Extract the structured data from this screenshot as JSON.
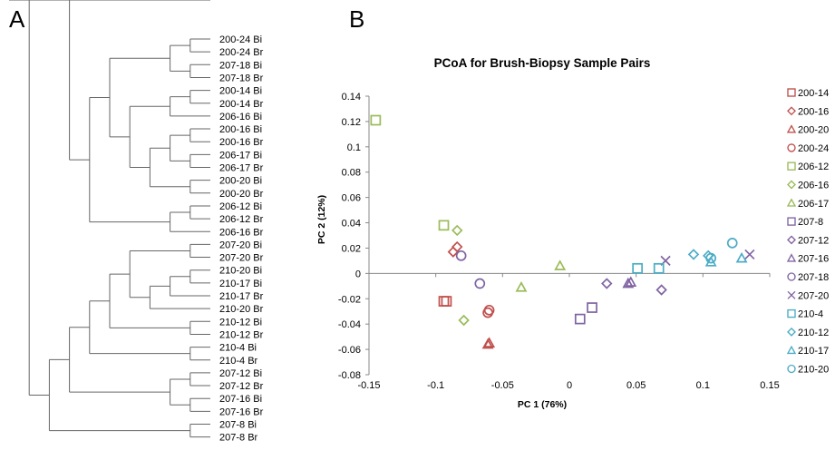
{
  "panel_a": {
    "letter": "A",
    "leaves": [
      "200-24 Bi",
      "200-24 Br",
      "207-18 Bi",
      "207-18 Br",
      "200-14 Bi",
      "200-14 Br",
      "206-16 Bi",
      "200-16 Bi",
      "200-16 Br",
      "206-17 Bi",
      "206-17 Br",
      "200-20 Bi",
      "200-20 Br",
      "206-12 Bi",
      "206-12 Br",
      "206-16 Br",
      "207-20 Bi",
      "207-20 Br",
      "210-20 Bi",
      "210-17 Bi",
      "210-17 Br",
      "210-20 Br",
      "210-12 Bi",
      "210-12 Br",
      "210-4 Bi",
      "210-4 Br",
      "207-12 Bi",
      "207-12 Br",
      "207-16 Bi",
      "207-16 Br",
      "207-8 Bi",
      "207-8 Br"
    ],
    "tree": [
      [
        [
          [
            [
              [
                0,
                1
              ],
              [
                2,
                3
              ]
            ],
            [
              [
                [
                  4,
                  5
                ],
                6
              ],
              [
                [
                  [
                    7,
                    8
                  ],
                  [
                    9,
                    10
                  ]
                ],
                [
                  11,
                  12
                ]
              ]
            ]
          ],
          [
            [
              13,
              14
            ],
            15
          ]
        ]
      ],
      [
        [
          [
            [
              [
                [
                  [
                    16,
                    17
                  ],
                  [
                    [
                      [
                        18,
                        19
                      ],
                      20
                    ],
                    21
                  ]
                ],
                [
                  22,
                  23
                ]
              ],
              [
                24,
                25
              ]
            ],
            [
              [
                26,
                27
              ],
              [
                28,
                29
              ]
            ]
          ],
          [
            30,
            31
          ]
        ]
      ]
    ]
  },
  "chart_data": {
    "type": "scatter",
    "panel_letter": "B",
    "title": "PCoA for Brush-Biopsy Sample Pairs",
    "xlabel": "PC 1 (76%)",
    "ylabel": "PC 2 (12%)",
    "xlim": [
      -0.15,
      0.15
    ],
    "ylim": [
      -0.08,
      0.14
    ],
    "xticks": [
      "-0.15",
      "-0.1",
      "-0.05",
      "0",
      "0.05",
      "0.1",
      "0.15"
    ],
    "yticks": [
      "0.14",
      "0.12",
      "0.1",
      "0.08",
      "0.06",
      "0.04",
      "0.02",
      "0",
      "-0.02",
      "-0.04",
      "-0.06",
      "-0.08"
    ],
    "grid": false,
    "legend_position": "right",
    "series": [
      {
        "name": "200-14",
        "marker": "square",
        "color": "#c0504d",
        "points": [
          [
            -0.094,
            -0.022
          ],
          [
            -0.092,
            -0.022
          ]
        ]
      },
      {
        "name": "200-16",
        "marker": "diamond",
        "color": "#c0504d",
        "points": [
          [
            -0.087,
            0.017
          ],
          [
            -0.084,
            0.021
          ]
        ]
      },
      {
        "name": "200-20",
        "marker": "triangle",
        "color": "#c0504d",
        "points": [
          [
            -0.061,
            -0.056
          ],
          [
            -0.06,
            -0.055
          ]
        ]
      },
      {
        "name": "200-24",
        "marker": "circle",
        "color": "#c0504d",
        "points": [
          [
            -0.061,
            -0.031
          ],
          [
            -0.06,
            -0.029
          ]
        ]
      },
      {
        "name": "206-12",
        "marker": "square",
        "color": "#9bbb59",
        "points": [
          [
            -0.145,
            0.121
          ],
          [
            -0.094,
            0.038
          ]
        ]
      },
      {
        "name": "206-16",
        "marker": "diamond",
        "color": "#9bbb59",
        "points": [
          [
            -0.084,
            0.034
          ],
          [
            -0.079,
            -0.037
          ]
        ]
      },
      {
        "name": "206-17",
        "marker": "triangle",
        "color": "#9bbb59",
        "points": [
          [
            -0.036,
            -0.011
          ],
          [
            -0.007,
            0.006
          ]
        ]
      },
      {
        "name": "207-8",
        "marker": "square",
        "color": "#8064a2",
        "points": [
          [
            0.008,
            -0.036
          ],
          [
            0.017,
            -0.027
          ]
        ]
      },
      {
        "name": "207-12",
        "marker": "diamond",
        "color": "#8064a2",
        "points": [
          [
            0.028,
            -0.008
          ],
          [
            0.069,
            -0.013
          ]
        ]
      },
      {
        "name": "207-16",
        "marker": "triangle",
        "color": "#8064a2",
        "points": [
          [
            0.044,
            -0.008
          ],
          [
            0.046,
            -0.007
          ]
        ]
      },
      {
        "name": "207-18",
        "marker": "circle",
        "color": "#8064a2",
        "points": [
          [
            -0.081,
            0.014
          ],
          [
            -0.067,
            -0.008
          ]
        ]
      },
      {
        "name": "207-20",
        "marker": "cross",
        "color": "#8064a2",
        "points": [
          [
            0.072,
            0.01
          ],
          [
            0.135,
            0.015
          ]
        ]
      },
      {
        "name": "210-4",
        "marker": "square",
        "color": "#4bacc6",
        "points": [
          [
            0.051,
            0.004
          ],
          [
            0.067,
            0.004
          ]
        ]
      },
      {
        "name": "210-12",
        "marker": "diamond",
        "color": "#4bacc6",
        "points": [
          [
            0.093,
            0.015
          ],
          [
            0.104,
            0.014
          ]
        ]
      },
      {
        "name": "210-17",
        "marker": "triangle",
        "color": "#4bacc6",
        "points": [
          [
            0.106,
            0.009
          ],
          [
            0.129,
            0.012
          ]
        ]
      },
      {
        "name": "210-20",
        "marker": "circle",
        "color": "#4bacc6",
        "points": [
          [
            0.106,
            0.012
          ],
          [
            0.122,
            0.024
          ]
        ]
      }
    ]
  }
}
